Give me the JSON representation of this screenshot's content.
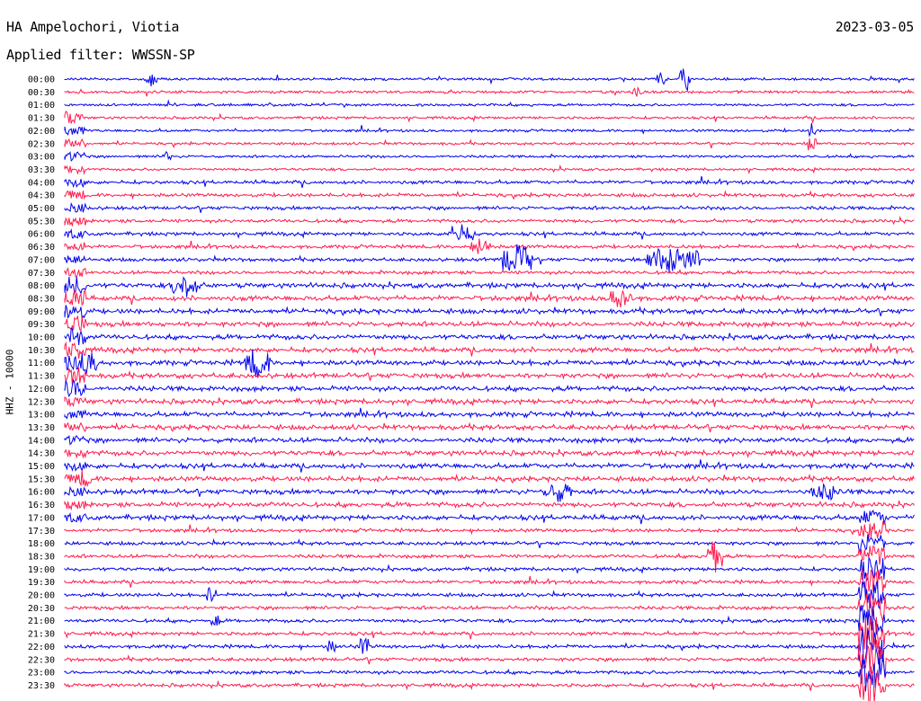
{
  "header": {
    "station": "HA Ampelochori, Viotia",
    "date": "2023-03-05",
    "filter": "Applied filter: WWSSN-SP"
  },
  "axis": {
    "channel_label": "HHZ - 10000"
  },
  "colors": {
    "trace_a": "#0000ee",
    "trace_b": "#ff1a4d",
    "background": "#ffffff",
    "text": "#000000"
  },
  "chart_data": {
    "type": "line",
    "time_labels": [
      "00:00",
      "00:30",
      "01:00",
      "01:30",
      "02:00",
      "02:30",
      "03:00",
      "03:30",
      "04:00",
      "04:30",
      "05:00",
      "05:30",
      "06:00",
      "06:30",
      "07:00",
      "07:30",
      "08:00",
      "08:30",
      "09:00",
      "09:30",
      "10:00",
      "10:30",
      "11:00",
      "11:30",
      "12:00",
      "12:30",
      "13:00",
      "13:30",
      "14:00",
      "14:30",
      "15:00",
      "15:30",
      "16:00",
      "16:30",
      "17:00",
      "17:30",
      "18:00",
      "18:30",
      "19:00",
      "19:30",
      "20:00",
      "20:30",
      "21:00",
      "21:30",
      "22:00",
      "22:30",
      "23:00",
      "23:30"
    ]
  }
}
